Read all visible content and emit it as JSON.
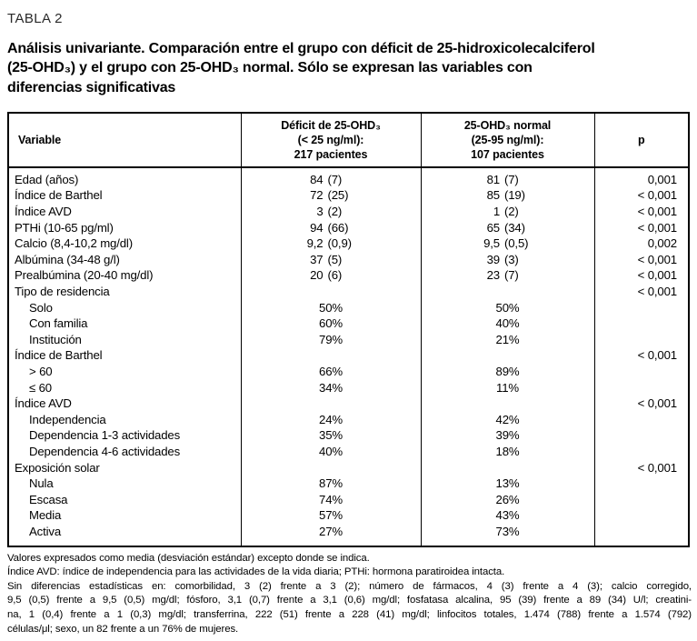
{
  "page": {
    "label": "TABLA 2",
    "title_lines": [
      "Análisis univariante. Comparación entre el grupo con déficit de 25-hidroxicolecalciferol",
      "(25-OHD₃) y el grupo con 25-OHD₃ normal. Sólo se expresan las variables con",
      "diferencias significativas"
    ]
  },
  "table": {
    "header": {
      "variable": "Variable",
      "deficit_lines": [
        "Déficit de 25-OHD₃",
        "(< 25 ng/ml):",
        "217 pacientes"
      ],
      "normal_lines": [
        "25-OHD₃ normal",
        "(25-95 ng/ml):",
        "107 pacientes"
      ],
      "p": "p"
    },
    "rows": [
      {
        "label": "Edad (años)",
        "indent": false,
        "d_mean": "84",
        "d_sd": "(7)",
        "n_mean": "81",
        "n_sd": "(7)",
        "p": "0,001"
      },
      {
        "label": "Índice de Barthel",
        "indent": false,
        "d_mean": "72",
        "d_sd": "(25)",
        "n_mean": "85",
        "n_sd": "(19)",
        "p": "< 0,001"
      },
      {
        "label": "Índice AVD",
        "indent": false,
        "d_mean": "3",
        "d_sd": "(2)",
        "n_mean": "1",
        "n_sd": "(2)",
        "p": "< 0,001"
      },
      {
        "label": "PTHi (10-65 pg/ml)",
        "indent": false,
        "d_mean": "94",
        "d_sd": "(66)",
        "n_mean": "65",
        "n_sd": "(34)",
        "p": "< 0,001"
      },
      {
        "label": "Calcio (8,4-10,2 mg/dl)",
        "indent": false,
        "d_mean": "9,2",
        "d_sd": "(0,9)",
        "n_mean": "9,5",
        "n_sd": "(0,5)",
        "p": "0,002"
      },
      {
        "label": "Albúmina (34-48 g/l)",
        "indent": false,
        "d_mean": "37",
        "d_sd": "(5)",
        "n_mean": "39",
        "n_sd": "(3)",
        "p": "< 0,001"
      },
      {
        "label": "Prealbúmina (20-40 mg/dl)",
        "indent": false,
        "d_mean": "20",
        "d_sd": "(6)",
        "n_mean": "23",
        "n_sd": "(7)",
        "p": "< 0,001"
      },
      {
        "label": "Tipo de residencia",
        "indent": false,
        "p": "< 0,001"
      },
      {
        "label": "Solo",
        "indent": true,
        "d_pct": "50%",
        "n_pct": "50%"
      },
      {
        "label": "Con familia",
        "indent": true,
        "d_pct": "60%",
        "n_pct": "40%"
      },
      {
        "label": "Institución",
        "indent": true,
        "d_pct": "79%",
        "n_pct": "21%"
      },
      {
        "label": "Índice de Barthel",
        "indent": false,
        "p": "< 0,001"
      },
      {
        "label": "> 60",
        "indent": true,
        "d_pct": "66%",
        "n_pct": "89%"
      },
      {
        "label": "≤ 60",
        "indent": true,
        "d_pct": "34%",
        "n_pct": "11%"
      },
      {
        "label": "Índice AVD",
        "indent": false,
        "p": "< 0,001"
      },
      {
        "label": "Independencia",
        "indent": true,
        "d_pct": "24%",
        "n_pct": "42%"
      },
      {
        "label": "Dependencia 1-3 actividades",
        "indent": true,
        "d_pct": "35%",
        "n_pct": "39%"
      },
      {
        "label": "Dependencia 4-6 actividades",
        "indent": true,
        "d_pct": "40%",
        "n_pct": "18%"
      },
      {
        "label": "Exposición solar",
        "indent": false,
        "p": "< 0,001"
      },
      {
        "label": "Nula",
        "indent": true,
        "d_pct": "87%",
        "n_pct": "13%"
      },
      {
        "label": "Escasa",
        "indent": true,
        "d_pct": "74%",
        "n_pct": "26%"
      },
      {
        "label": "Media",
        "indent": true,
        "d_pct": "57%",
        "n_pct": "43%"
      },
      {
        "label": "Activa",
        "indent": true,
        "d_pct": "27%",
        "n_pct": "73%"
      }
    ]
  },
  "footnotes": {
    "line1": "Valores expresados como media (desviación estándar) excepto donde se indica.",
    "line2": "Índice AVD: índice de independencia para las actividades de la vida diaria; PTHi: hormona paratiroidea intacta.",
    "note_lines": [
      "Sin diferencias estadísticas en: comorbilidad, 3 (2) frente a 3 (2); número de fármacos, 4 (3) frente a 4 (3); calcio corregido,",
      "9,5 (0,5) frente a 9,5 (0,5) mg/dl; fósforo, 3,1 (0,7) frente a 3,1 (0,6) mg/dl; fosfatasa alcalina, 95 (39) frente a 89 (34) U/l; creatini-",
      "na, 1 (0,4) frente a 1 (0,3) mg/dl; transferrina, 222 (51) frente a 228 (41) mg/dl; linfocitos totales, 1.474 (788) frente a 1.574 (792)",
      "células/μl; sexo, un 82 frente a un 76% de mujeres."
    ]
  }
}
